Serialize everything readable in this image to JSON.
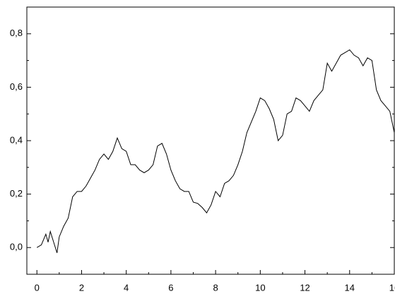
{
  "chart_data": {
    "type": "line",
    "x": [
      0,
      0.2,
      0.4,
      0.5,
      0.6,
      0.9,
      1.0,
      1.2,
      1.4,
      1.6,
      1.8,
      2.0,
      2.2,
      2.4,
      2.6,
      2.8,
      3.0,
      3.2,
      3.4,
      3.6,
      3.8,
      4.0,
      4.2,
      4.4,
      4.6,
      4.8,
      5.0,
      5.2,
      5.4,
      5.6,
      5.8,
      6.0,
      6.2,
      6.4,
      6.6,
      6.8,
      7.0,
      7.2,
      7.4,
      7.6,
      7.8,
      8.0,
      8.2,
      8.4,
      8.6,
      8.8,
      9.0,
      9.2,
      9.4,
      9.6,
      9.8,
      10.0,
      10.2,
      10.4,
      10.6,
      10.8,
      11.0,
      11.2,
      11.4,
      11.6,
      11.8,
      12.0,
      12.2,
      12.4,
      12.6,
      12.8,
      13.0,
      13.2,
      13.4,
      13.6,
      13.8,
      14.0,
      14.2,
      14.4,
      14.6,
      14.8,
      15.0,
      15.2,
      15.4,
      15.6,
      15.8,
      16.0
    ],
    "series": [
      {
        "color": "#000000",
        "values": [
          0.0,
          0.01,
          0.05,
          0.02,
          0.06,
          -0.02,
          0.04,
          0.08,
          0.11,
          0.19,
          0.21,
          0.21,
          0.23,
          0.26,
          0.29,
          0.33,
          0.35,
          0.33,
          0.36,
          0.41,
          0.37,
          0.36,
          0.31,
          0.31,
          0.29,
          0.28,
          0.29,
          0.31,
          0.38,
          0.39,
          0.35,
          0.29,
          0.25,
          0.22,
          0.21,
          0.21,
          0.17,
          0.165,
          0.15,
          0.13,
          0.16,
          0.21,
          0.19,
          0.24,
          0.25,
          0.27,
          0.31,
          0.36,
          0.43,
          0.47,
          0.51,
          0.56,
          0.55,
          0.52,
          0.48,
          0.4,
          0.42,
          0.5,
          0.51,
          0.56,
          0.55,
          0.53,
          0.51,
          0.55,
          0.57,
          0.59,
          0.69,
          0.66,
          0.69,
          0.72,
          0.73,
          0.74,
          0.72,
          0.71,
          0.68,
          0.71,
          0.7,
          0.59,
          0.55,
          0.53,
          0.51,
          0.43
        ]
      }
    ],
    "xlim": [
      -0.45,
      16
    ],
    "ylim": [
      -0.1,
      0.9
    ],
    "xticks": [
      0,
      2,
      4,
      6,
      8,
      10,
      12,
      14,
      16
    ],
    "xminorticks": [
      1,
      3,
      5,
      7,
      9,
      11,
      13,
      15
    ],
    "yticks": [
      {
        "value": 0,
        "label": "0,0"
      },
      {
        "value": 0.2,
        "label": "0,2"
      },
      {
        "value": 0.4,
        "label": "0,4"
      },
      {
        "value": 0.6,
        "label": "0,6"
      },
      {
        "value": 0.8,
        "label": "0,8"
      }
    ],
    "yminorticks": [
      -0.1,
      0.1,
      0.3,
      0.5,
      0.7
    ]
  }
}
